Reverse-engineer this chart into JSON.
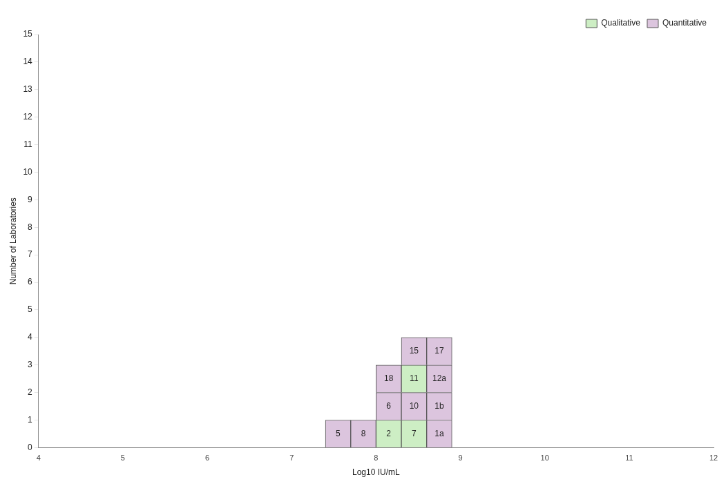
{
  "chart_data": {
    "type": "bar",
    "stacked": true,
    "xlabel": "Log10 IU/mL",
    "ylabel": "Number of Laboratories",
    "x": [
      7.55,
      7.85,
      8.15,
      8.45,
      8.75
    ],
    "xlim": [
      4,
      12
    ],
    "xticks": [
      4,
      5,
      6,
      7,
      8,
      9,
      10,
      11,
      12
    ],
    "ylim": [
      0,
      15
    ],
    "yticks": [
      0,
      1,
      2,
      3,
      4,
      5,
      6,
      7,
      8,
      9,
      10,
      11,
      12,
      13,
      14,
      15
    ],
    "grid": false,
    "legend": "top right",
    "series": [
      {
        "name": "Qualitative",
        "color": "#cdeec4",
        "values": [
          null,
          null,
          1,
          1,
          null
        ]
      },
      {
        "name": "Quantitative",
        "color": "#dcc5de",
        "values": [
          1,
          1,
          null,
          null,
          1
        ]
      },
      {
        "color": "#dcc5de",
        "values": [
          null,
          null,
          1,
          1,
          1
        ]
      },
      {
        "color": "#dcc5de",
        "values": [
          null,
          null,
          1,
          null,
          1
        ]
      },
      {
        "color": "#cdeec4",
        "values": [
          null,
          null,
          null,
          1,
          null
        ]
      },
      {
        "color": "#dcc5de",
        "values": [
          null,
          null,
          null,
          1,
          1
        ]
      }
    ],
    "annotations": [
      {
        "text": "5",
        "x": 7.55,
        "y": 1
      },
      {
        "text": "8",
        "x": 7.85,
        "y": 1
      },
      {
        "text": "2",
        "x": 8.15,
        "y": 1
      },
      {
        "text": "7",
        "x": 8.45,
        "y": 1
      },
      {
        "text": "1a",
        "x": 8.75,
        "y": 1
      },
      {
        "text": "6",
        "x": 8.15,
        "y": 2
      },
      {
        "text": "10",
        "x": 8.45,
        "y": 2
      },
      {
        "text": "1b",
        "x": 8.75,
        "y": 2
      },
      {
        "text": "18",
        "x": 8.15,
        "y": 3
      },
      {
        "text": "11",
        "x": 8.45,
        "y": 3
      },
      {
        "text": "12a",
        "x": 8.75,
        "y": 3
      },
      {
        "text": "15",
        "x": 8.45,
        "y": 4
      },
      {
        "text": "17",
        "x": 8.75,
        "y": 4
      }
    ]
  }
}
